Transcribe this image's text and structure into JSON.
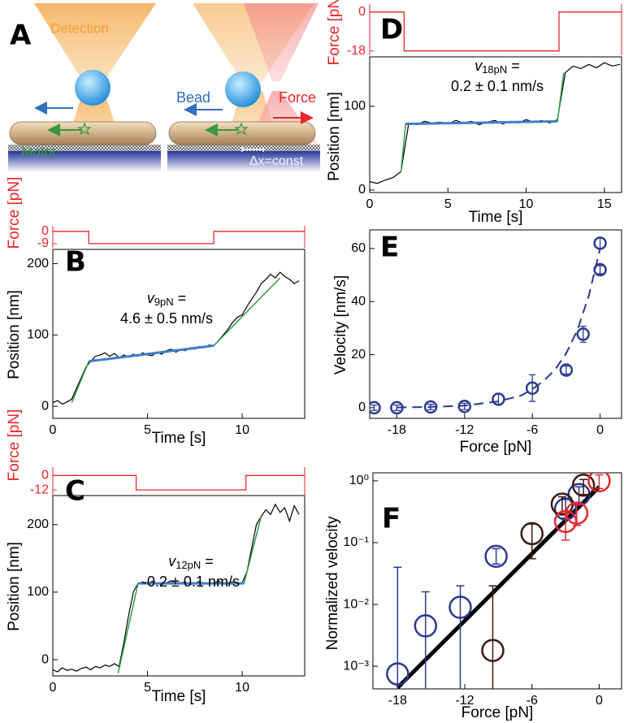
{
  "diagram": {
    "panel": "A",
    "labels": {
      "detection": "Detection",
      "bead": "Bead",
      "force": "Force",
      "motor": "Motor",
      "offset": "Δx=const"
    }
  },
  "chart_data": [
    {
      "type": "trace",
      "panel": "B",
      "xlabel": "Time [s]",
      "ylabel": "Position [nm]",
      "color": "#000000",
      "xlim": [
        0,
        13.3
      ],
      "xticks": [
        0,
        5,
        10
      ],
      "ylim": [
        -17,
        220
      ],
      "yticks": [
        0,
        100,
        200
      ],
      "x": [
        0,
        0.25,
        0.5,
        0.75,
        1,
        1.25,
        1.5,
        1.75,
        2,
        2.25,
        2.5,
        2.75,
        3,
        3.25,
        3.5,
        3.75,
        4,
        4.25,
        4.5,
        4.75,
        5,
        5.25,
        5.5,
        5.75,
        6,
        6.25,
        6.5,
        6.75,
        7,
        7.25,
        7.5,
        7.75,
        8,
        8.25,
        8.5,
        8.75,
        9,
        9.25,
        9.5,
        9.75,
        10,
        10.25,
        10.5,
        10.75,
        11,
        11.25,
        11.5,
        11.75,
        12,
        12.25,
        12.5,
        12.75,
        13
      ],
      "values": [
        5,
        8,
        3,
        6,
        10,
        25,
        40,
        55,
        63,
        70,
        72,
        75,
        70,
        74,
        68,
        72,
        69,
        73,
        70,
        75,
        72,
        71,
        76,
        73,
        78,
        80,
        76,
        79,
        78,
        82,
        80,
        84,
        82,
        86,
        85,
        92,
        100,
        108,
        118,
        125,
        128,
        140,
        150,
        160,
        172,
        178,
        185,
        180,
        188,
        182,
        178,
        172,
        176
      ],
      "fits": [
        {
          "color": "#3f7fc8",
          "x": [
            1.9,
            8.5
          ],
          "values": [
            63,
            85
          ]
        },
        {
          "color": "#2e9e46",
          "x": [
            1,
            1.9
          ],
          "values": [
            5,
            63
          ]
        },
        {
          "color": "#2e9e46",
          "x": [
            8.5,
            12
          ],
          "values": [
            85,
            180
          ]
        }
      ],
      "annotation": {
        "symbol": "v",
        "subscript": "9pN",
        "equals": "=",
        "text": "4.6 ± 0.5 nm/s"
      },
      "force": {
        "label": "Force [pN]",
        "color": "#e8262a",
        "x": [
          0,
          1.9,
          1.9,
          8.5,
          8.5,
          13.3
        ],
        "values": [
          0,
          0,
          -9,
          -9,
          0,
          0
        ],
        "ylim": [
          -12,
          4
        ],
        "yticks": [
          0,
          -9
        ]
      }
    },
    {
      "type": "trace",
      "panel": "C",
      "xlabel": "Time [s]",
      "ylabel": "Position [nm]",
      "color": "#000000",
      "xlim": [
        0,
        13.3
      ],
      "xticks": [
        0,
        5,
        10
      ],
      "ylim": [
        -24,
        243
      ],
      "yticks": [
        0,
        100,
        200
      ],
      "x": [
        0,
        0.25,
        0.5,
        0.75,
        1,
        1.25,
        1.5,
        1.75,
        2,
        2.25,
        2.5,
        2.75,
        3,
        3.25,
        3.5,
        3.75,
        4,
        4.25,
        4.5,
        4.75,
        5,
        5.25,
        5.5,
        5.75,
        6,
        6.25,
        6.5,
        6.75,
        7,
        7.25,
        7.5,
        7.75,
        8,
        8.25,
        8.5,
        8.75,
        9,
        9.25,
        9.5,
        9.75,
        10,
        10.25,
        10.5,
        10.75,
        11,
        11.25,
        11.5,
        11.75,
        12,
        12.25,
        12.5,
        12.75,
        13
      ],
      "values": [
        -15,
        -18,
        -12,
        -16,
        -14,
        -17,
        -13,
        -11,
        -15,
        -10,
        -12,
        -8,
        -10,
        -6,
        -10,
        25,
        65,
        100,
        113,
        115,
        112,
        116,
        113,
        111,
        114,
        117,
        112,
        114,
        115,
        111,
        113,
        116,
        112,
        114,
        113,
        117,
        112,
        114,
        115,
        112,
        114,
        130,
        165,
        200,
        212,
        222,
        215,
        230,
        218,
        225,
        205,
        228,
        215
      ],
      "fits": [
        {
          "color": "#3f7fc8",
          "x": [
            4.5,
            10.1
          ],
          "values": [
            113,
            113
          ]
        },
        {
          "color": "#2e9e46",
          "x": [
            3.45,
            4.5
          ],
          "values": [
            -20,
            113
          ]
        },
        {
          "color": "#2e9e46",
          "x": [
            10.1,
            11
          ],
          "values": [
            113,
            212
          ]
        }
      ],
      "annotation": {
        "symbol": "v",
        "subscript": "12pN",
        "equals": "=",
        "text": "-0.2 ± 0.1 nm/s"
      },
      "force": {
        "label": "Force [pN]",
        "color": "#e8262a",
        "x": [
          0,
          4.4,
          4.4,
          10.2,
          10.2,
          13.3
        ],
        "values": [
          0,
          0,
          -12,
          -12,
          0,
          0
        ],
        "ylim": [
          -16,
          7
        ],
        "yticks": [
          0,
          -12
        ]
      }
    },
    {
      "type": "trace",
      "panel": "D",
      "xlabel": "Time [s]",
      "ylabel": "Position [nm]",
      "color": "#000000",
      "xlim": [
        0,
        16.1
      ],
      "xticks": [
        0,
        5,
        10,
        15
      ],
      "ylim": [
        -3,
        159
      ],
      "yticks": [
        0,
        100
      ],
      "x": [
        0,
        0.5,
        1,
        1.5,
        2,
        2.5,
        3,
        3.5,
        4,
        4.5,
        5,
        5.5,
        6,
        6.5,
        7,
        7.5,
        8,
        8.5,
        9,
        9.5,
        10,
        10.5,
        11,
        11.5,
        12,
        12.5,
        13,
        13.5,
        14,
        14.5,
        15,
        15.5,
        16
      ],
      "values": [
        10,
        8,
        12,
        15,
        22,
        80,
        78,
        82,
        80,
        81,
        79,
        83,
        80,
        82,
        78,
        81,
        83,
        79,
        82,
        80,
        84,
        81,
        83,
        80,
        84,
        140,
        148,
        145,
        150,
        146,
        152,
        148,
        150
      ],
      "fits": [
        {
          "color": "#3f7fc8",
          "x": [
            2.3,
            12
          ],
          "values": [
            79,
            82
          ]
        },
        {
          "color": "#2e9e46",
          "x": [
            2,
            2.3
          ],
          "values": [
            22,
            79
          ]
        },
        {
          "color": "#2e9e46",
          "x": [
            12,
            12.4
          ],
          "values": [
            82,
            140
          ]
        }
      ],
      "annotation": {
        "symbol": "v",
        "subscript": "18pN",
        "equals": "=",
        "text": "0.2 ± 0.1 nm/s"
      },
      "force": {
        "label": "Force [pN]",
        "color": "#e8262a",
        "x": [
          0,
          2.2,
          2.2,
          12.1,
          12.1,
          16.1
        ],
        "values": [
          0,
          0,
          -18,
          -18,
          0,
          0
        ],
        "ylim": [
          -20,
          3.7
        ],
        "yticks": [
          0,
          -18
        ]
      }
    },
    {
      "type": "scatter",
      "panel": "E",
      "xlabel": "Force [pN]",
      "ylabel": "Velocity [nm/s]",
      "color": "#2b3990",
      "xlim": [
        -20.4,
        1.9
      ],
      "xticks": [
        -18,
        -12,
        -6,
        0
      ],
      "ylim": [
        -4,
        67
      ],
      "yticks": [
        0,
        20,
        40,
        60
      ],
      "x": [
        -20,
        -18,
        -15,
        -12,
        -9,
        -6,
        -3,
        -1.5,
        0,
        0
      ],
      "values": [
        0,
        0,
        0.3,
        0.5,
        3.2,
        7.4,
        14.2,
        27.7,
        52,
        62
      ],
      "err": [
        1,
        1,
        1,
        1.2,
        2,
        5,
        1.5,
        3,
        1.5,
        2
      ],
      "fit_x": [
        -18,
        -15,
        -12,
        -9,
        -7,
        -6,
        -5,
        -4,
        -3,
        -2,
        -1,
        0
      ],
      "fit_values": [
        0.1,
        0.3,
        0.8,
        2.4,
        4.6,
        7,
        10.1,
        14.3,
        20.5,
        29.4,
        42.2,
        60
      ],
      "fit_style": "dashed"
    },
    {
      "type": "scatter",
      "panel": "F",
      "xlabel": "Force [pN]",
      "ylabel": "Normalized velocity",
      "log_y": true,
      "xlim": [
        -20.2,
        2
      ],
      "xticks": [
        -18,
        -12,
        -6,
        0
      ],
      "ylim": [
        0.00043,
        1.35
      ],
      "yticks": [
        {
          "value": 0.001,
          "label": "10⁻³"
        },
        {
          "value": 0.01,
          "label": "10⁻²"
        },
        {
          "value": 0.1,
          "label": "10⁻¹"
        },
        {
          "value": 1,
          "label": "10⁰"
        }
      ],
      "series": [
        {
          "color": "#2b3990",
          "x": [
            -18,
            -15.5,
            -12.4,
            -9.2,
            -3,
            -1.8
          ],
          "values": [
            0.00075,
            0.0045,
            0.009,
            0.06,
            0.35,
            0.6
          ],
          "lower": [
            0.0003,
            0.0003,
            0.0003,
            0.045,
            0.25,
            0.45
          ],
          "upper": [
            0.04,
            0.016,
            0.02,
            0.08,
            0.5,
            0.8
          ]
        },
        {
          "color": "#3b1a12",
          "x": [
            -9.5,
            -6,
            -3.3,
            -1.4
          ],
          "values": [
            0.0018,
            0.14,
            0.42,
            0.85
          ],
          "lower": [
            0.0003,
            0.055,
            0.3,
            0.6
          ],
          "upper": [
            0.02,
            0.2,
            0.55,
            1.05
          ]
        },
        {
          "color": "#e8262a",
          "x": [
            -3,
            -2,
            0
          ],
          "values": [
            0.22,
            0.3,
            1
          ],
          "lower": [
            0.11,
            0.19,
            0.75
          ],
          "upper": [
            0.3,
            0.42,
            1.25
          ]
        }
      ],
      "fit_x": [
        -18,
        0
      ],
      "fit_values": [
        0.00045,
        0.8
      ],
      "fit_color": "#000000"
    }
  ]
}
